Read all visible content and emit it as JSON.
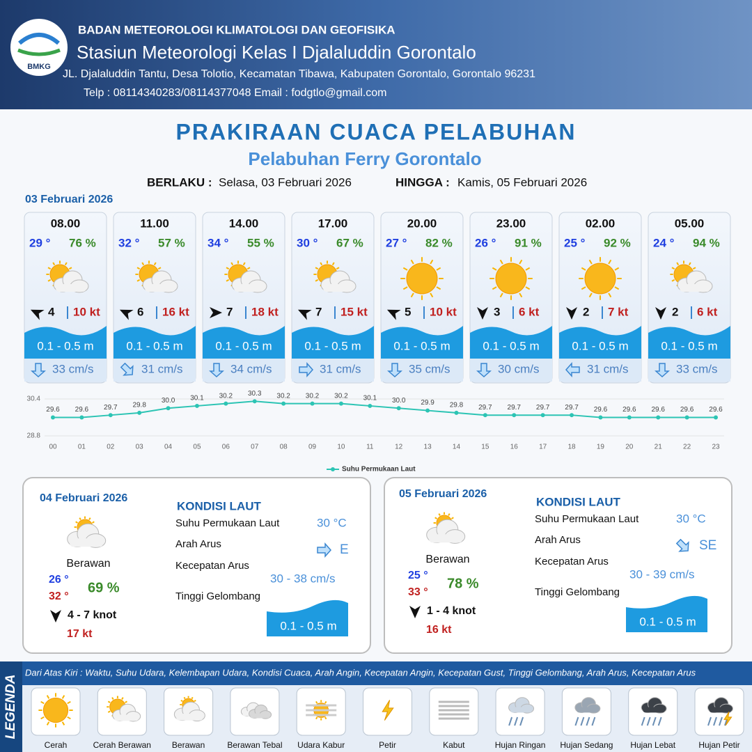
{
  "header": {
    "logo_text": "BMKG",
    "org": "BADAN METEOROLOGI KLIMATOLOGI DAN GEOFISIKA",
    "station": "Stasiun Meteorologi Kelas I Djalaluddin Gorontalo",
    "address": "JL. Djalaluddin Tantu, Desa Tolotio, Kecamatan Tibawa, Kabupaten Gorontalo, Gorontalo 96231",
    "contact": "Telp : 08114340283/08114377048 Email : fodgtlo@gmail.com"
  },
  "title": "PRAKIRAAN CUACA PELABUHAN",
  "subtitle": "Pelabuhan Ferry Gorontalo",
  "validity": {
    "from_label": "BERLAKU :",
    "from": "Selasa, 03 Februari 2026",
    "to_label": "HINGGA :",
    "to": "Kamis, 05 Februari 2026"
  },
  "day1": {
    "date": "03 Februari 2026",
    "slots": [
      {
        "time": "08.00",
        "temp": "29 °",
        "rh": "76 %",
        "wind": "4",
        "gust": "10 kt",
        "wave": "0.1 - 0.5 m",
        "current": "33 cm/s"
      },
      {
        "time": "11.00",
        "temp": "32 °",
        "rh": "57 %",
        "wind": "6",
        "gust": "16 kt",
        "wave": "0.1 - 0.5 m",
        "current": "31 cm/s"
      },
      {
        "time": "14.00",
        "temp": "34 °",
        "rh": "55 %",
        "wind": "7",
        "gust": "18 kt",
        "wave": "0.1 - 0.5 m",
        "current": "34 cm/s"
      },
      {
        "time": "17.00",
        "temp": "30 °",
        "rh": "67 %",
        "wind": "7",
        "gust": "15 kt",
        "wave": "0.1 - 0.5 m",
        "current": "31 cm/s"
      },
      {
        "time": "20.00",
        "temp": "27 °",
        "rh": "82 %",
        "wind": "5",
        "gust": "10 kt",
        "wave": "0.1 - 0.5 m",
        "current": "35 cm/s"
      },
      {
        "time": "23.00",
        "temp": "26 °",
        "rh": "91 %",
        "wind": "3",
        "gust": "6 kt",
        "wave": "0.1 - 0.5 m",
        "current": "30 cm/s"
      },
      {
        "time": "02.00",
        "temp": "25 °",
        "rh": "92 %",
        "wind": "2",
        "gust": "7 kt",
        "wave": "0.1 - 0.5 m",
        "current": "31 cm/s"
      },
      {
        "time": "05.00",
        "temp": "24 °",
        "rh": "94 %",
        "wind": "2",
        "gust": "6 kt",
        "wave": "0.1 - 0.5 m",
        "current": "33 cm/s"
      }
    ]
  },
  "chart_data": {
    "type": "line",
    "categories": [
      "00",
      "01",
      "02",
      "03",
      "04",
      "05",
      "06",
      "07",
      "08",
      "09",
      "10",
      "11",
      "12",
      "13",
      "14",
      "15",
      "16",
      "17",
      "18",
      "19",
      "20",
      "21",
      "22",
      "23"
    ],
    "series": [
      {
        "name": "Suhu Permukaan Laut",
        "color": "#2cc4b4",
        "values": [
          29.6,
          29.6,
          29.7,
          29.8,
          30.0,
          30.1,
          30.2,
          30.3,
          30.2,
          30.2,
          30.2,
          30.1,
          30.0,
          29.9,
          29.8,
          29.7,
          29.7,
          29.7,
          29.7,
          29.6,
          29.6,
          29.6,
          29.6,
          29.6
        ],
        "value_labels": [
          "29.6",
          "29.6",
          "29.7",
          "29.8",
          "30.0",
          "30.1",
          "30.2",
          "30.3",
          "30.2",
          "30.2",
          "30.2",
          "30.1",
          "30.0",
          "29.9",
          "29.8",
          "29.7",
          "29.7",
          "29.7",
          "29.7",
          "29.6",
          "29.6",
          "29.6",
          "29.6",
          "29.6"
        ]
      }
    ],
    "ylim": [
      28.8,
      30.4
    ],
    "yticks": [
      28.8,
      30.4
    ]
  },
  "days": [
    {
      "date": "04 Februari 2026",
      "weather": "Berawan",
      "tmin": "26 °",
      "tmax": "32 °",
      "rh": "69 %",
      "wind": "4  - 7 knot",
      "gust": "17 kt",
      "heading": "KONDISI LAUT",
      "labels": [
        "Suhu Permukaan Laut",
        "Arah Arus",
        "Kecepatan Arus",
        "Tinggi Gelombang"
      ],
      "sst": "30 °C",
      "current_dir": "E",
      "current_speed": "30  - 38 cm/s",
      "wave": "0.1 - 0.5 m"
    },
    {
      "date": "05 Februari 2026",
      "weather": "Berawan",
      "tmin": "25 °",
      "tmax": "33 °",
      "rh": "78 %",
      "wind": "1 - 4 knot",
      "gust": "16 kt",
      "heading": "KONDISI LAUT",
      "labels": [
        "Suhu Permukaan Laut",
        "Arah Arus",
        "Kecepatan Arus",
        "Tinggi Gelombang"
      ],
      "sst": "30 °C",
      "current_dir": "SE",
      "current_speed": "30 - 39 cm/s",
      "wave": "0.1 - 0.5 m"
    }
  ],
  "legend": {
    "title": "LEGENDA",
    "note": "Dari Atas Kiri : Waktu, Suhu Udara, Kelembapan Udara, Kondisi Cuaca, Arah Angin, Kecepatan Angin, Kecepatan Gust, Tinggi Gelombang, Arah Arus, Kecepatan Arus",
    "items": [
      "Cerah",
      "Cerah Berawan",
      "Berawan",
      "Berawan Tebal",
      "Udara Kabur",
      "Petir",
      "Kabut",
      "Hujan Ringan",
      "Hujan Sedang",
      "Hujan Lebat",
      "Hujan Petir"
    ]
  }
}
